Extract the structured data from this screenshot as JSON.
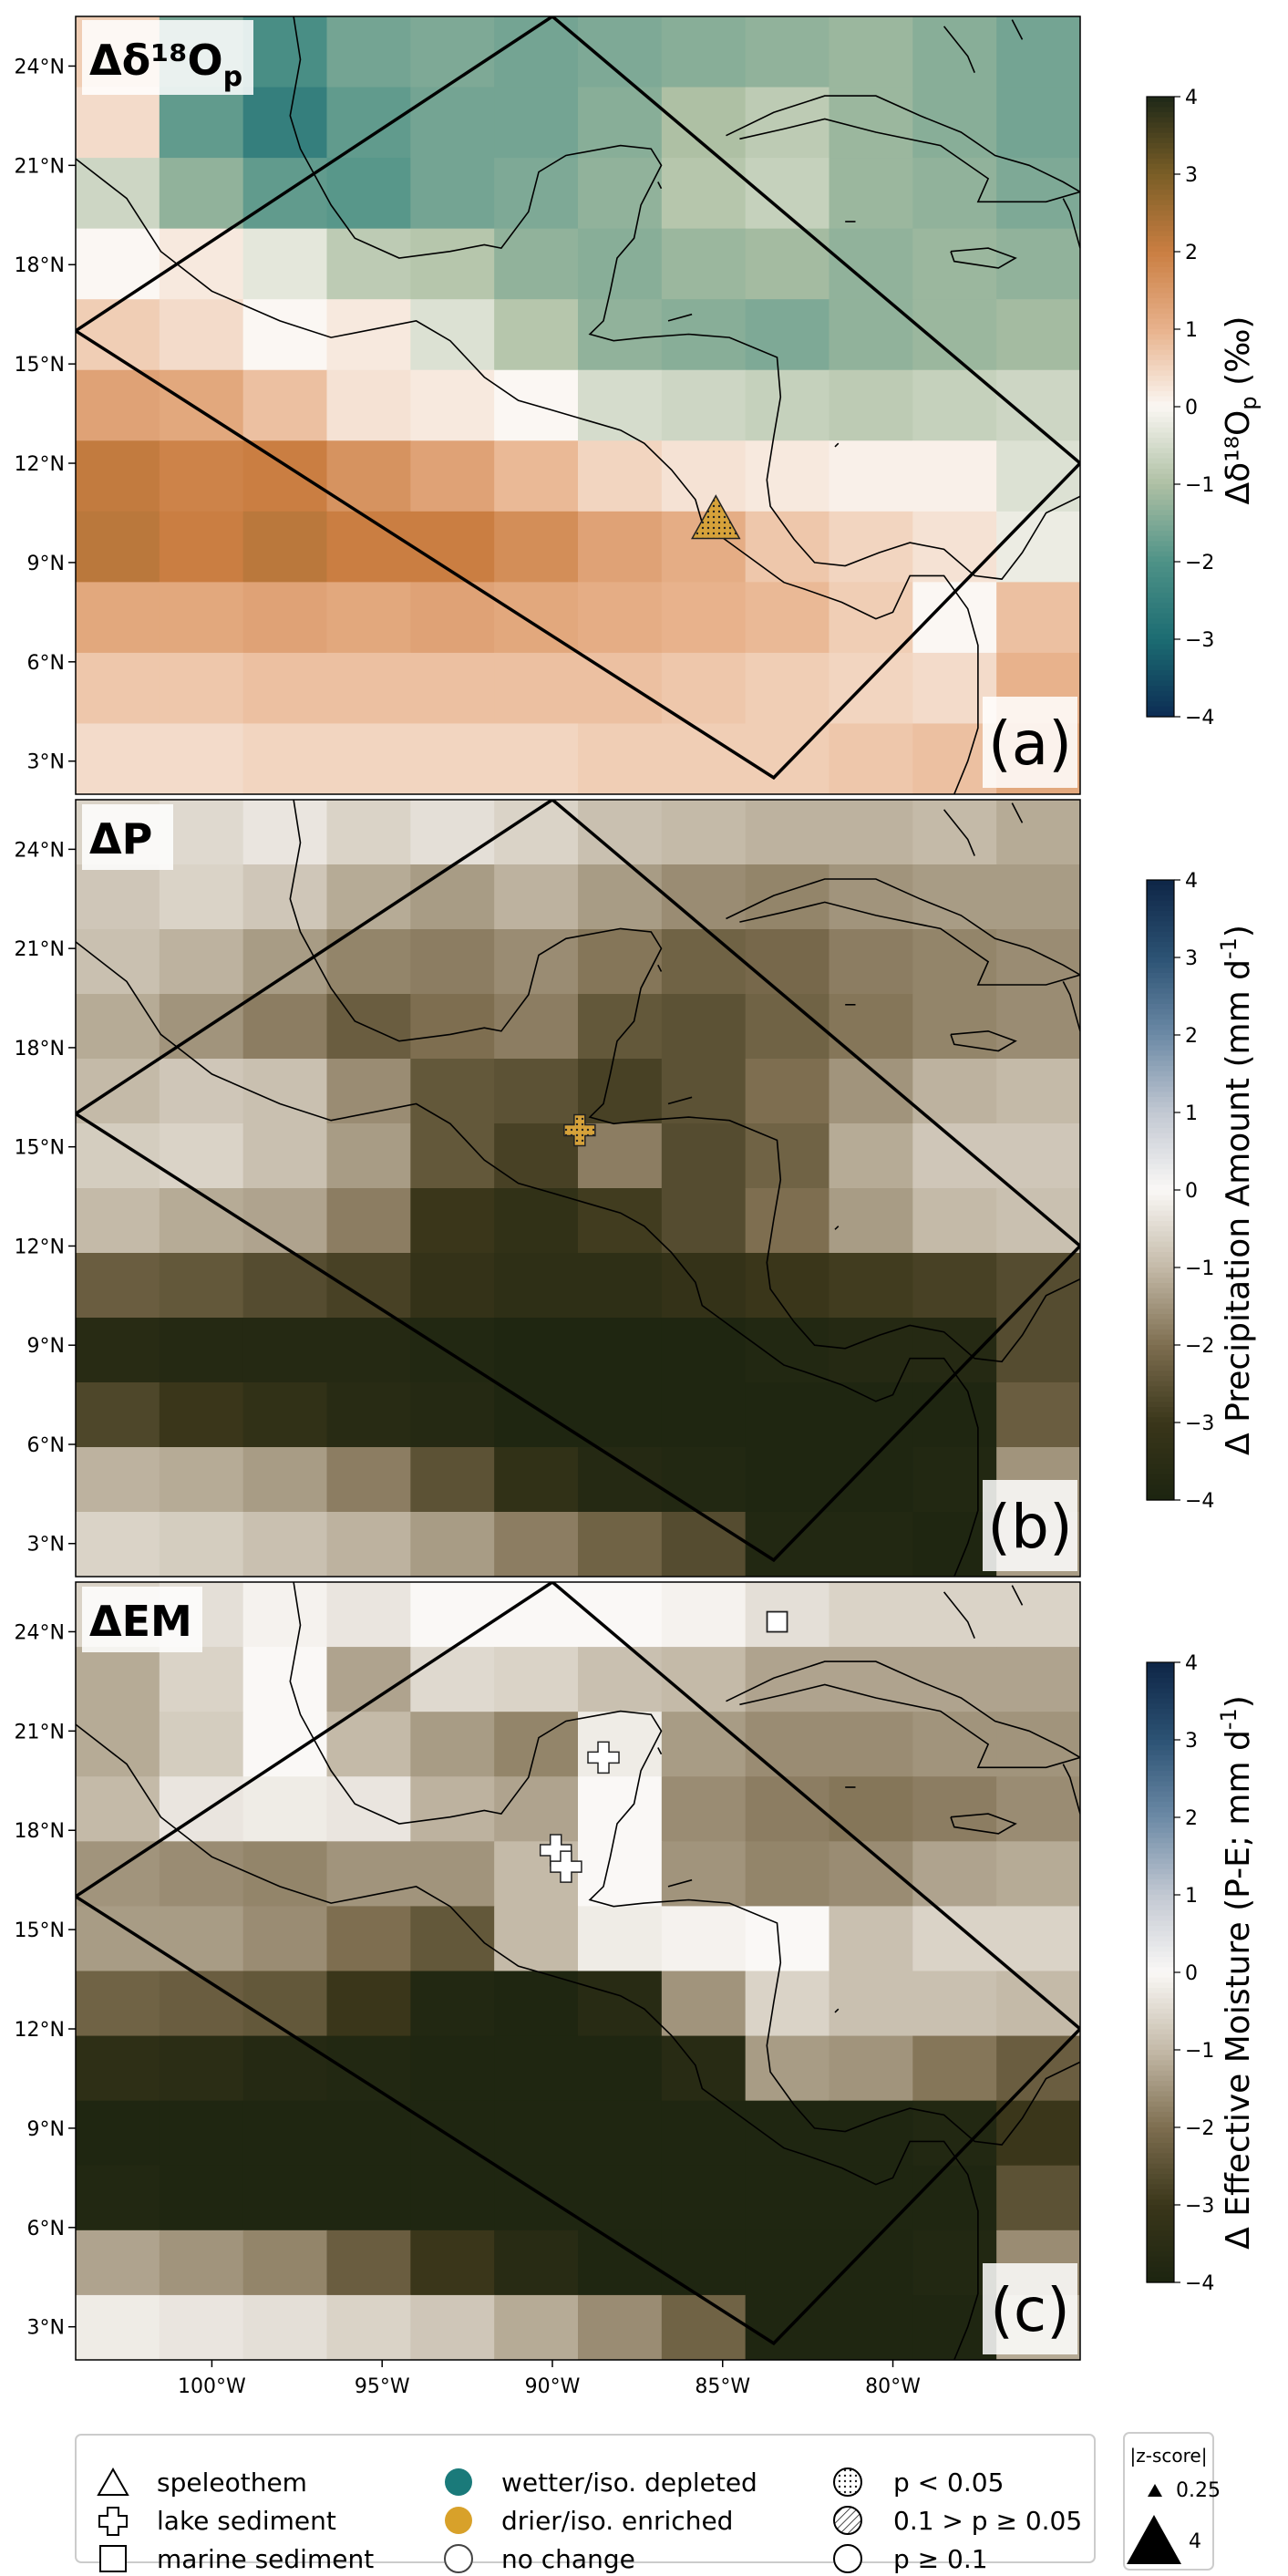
{
  "chart_data": [
    {
      "type": "heatmap",
      "panel_label": "(a)",
      "corner_label": "Δδ¹⁸O",
      "corner_sub": "p",
      "colorbar_label": "Δδ¹⁸O",
      "colorbar_sub": "p",
      "colorbar_unit": " (‰)",
      "colorbar_ticks": [
        -4,
        -3,
        -2,
        -1,
        0,
        1,
        2,
        3,
        4
      ],
      "vmin": -4,
      "vmax": 4,
      "cmap": "teal-brown",
      "x_lon_edges": [
        -104,
        -98.5,
        -93,
        -87.5,
        -82,
        -76.5
      ],
      "y_lat_range": [
        2,
        25.5
      ],
      "grid": [
        [
          0.6,
          -1.6,
          -2.1,
          -1.6,
          -1.5,
          -1.6,
          -1.5,
          -1.4,
          -1.3,
          -1.2,
          -1.4,
          -1.6
        ],
        [
          0.4,
          -1.8,
          -2.5,
          -1.8,
          -1.6,
          -1.6,
          -1.4,
          -1.0,
          -0.8,
          -1.2,
          -1.4,
          -1.6
        ],
        [
          -0.6,
          -1.3,
          -1.8,
          -1.9,
          -1.6,
          -1.5,
          -1.3,
          -0.9,
          -0.7,
          -1.2,
          -1.3,
          -1.5
        ],
        [
          0.0,
          0.2,
          -0.3,
          -0.8,
          -0.9,
          -1.3,
          -1.4,
          -1.2,
          -1.1,
          -1.3,
          -1.2,
          -1.3
        ],
        [
          0.6,
          0.4,
          0.0,
          0.2,
          -0.4,
          -0.9,
          -1.3,
          -1.4,
          -1.5,
          -1.3,
          -1.2,
          -1.1
        ],
        [
          1.3,
          1.2,
          0.8,
          0.3,
          0.2,
          0.0,
          -0.5,
          -0.6,
          -0.7,
          -0.8,
          -0.7,
          -0.6
        ],
        [
          2.1,
          1.9,
          2.0,
          1.6,
          1.3,
          0.9,
          0.5,
          0.3,
          0.2,
          0.1,
          0.1,
          -0.4
        ],
        [
          2.2,
          2.0,
          2.2,
          2.0,
          2.0,
          1.7,
          1.3,
          1.1,
          0.7,
          0.5,
          0.3,
          -0.2
        ],
        [
          1.2,
          1.2,
          1.3,
          1.2,
          1.3,
          1.2,
          1.1,
          1.0,
          0.9,
          0.6,
          0.0,
          0.8
        ],
        [
          0.7,
          0.7,
          0.8,
          0.8,
          0.8,
          0.8,
          0.8,
          0.7,
          0.6,
          0.5,
          0.4,
          1.0
        ],
        [
          0.4,
          0.4,
          0.5,
          0.5,
          0.5,
          0.5,
          0.6,
          0.6,
          0.6,
          0.7,
          0.8,
          1.2
        ]
      ],
      "proxies": [
        {
          "type": "speleothem",
          "lon": -85.2,
          "lat": 10.3,
          "color": "#d6a23a",
          "significance": "p < 0.05"
        }
      ]
    },
    {
      "type": "heatmap",
      "panel_label": "(b)",
      "corner_label": "ΔP",
      "corner_sub": "",
      "colorbar_label": "Δ Precipitation Amount (mm d",
      "colorbar_sub": "",
      "colorbar_unit": "-1",
      "colorbar_unit_tail": ")",
      "colorbar_ticks": [
        -4,
        -3,
        -2,
        -1,
        0,
        1,
        2,
        3,
        4
      ],
      "vmin": -4,
      "vmax": 4,
      "cmap": "brown-blue",
      "x_lon_edges": [
        -104,
        -98.5,
        -93,
        -87.5,
        -82,
        -76.5
      ],
      "y_lat_range": [
        2,
        25.5
      ],
      "grid": [
        [
          -0.6,
          -0.5,
          -0.3,
          -0.6,
          -0.4,
          -0.6,
          -0.9,
          -1.0,
          -1.1,
          -1.1,
          -1.0,
          -1.2
        ],
        [
          -0.8,
          -0.6,
          -0.8,
          -1.2,
          -1.4,
          -1.1,
          -1.4,
          -1.6,
          -1.7,
          -1.5,
          -1.4,
          -1.4
        ],
        [
          -0.9,
          -1.1,
          -1.4,
          -1.7,
          -1.8,
          -1.6,
          -1.9,
          -2.2,
          -2.1,
          -1.8,
          -1.7,
          -1.6
        ],
        [
          -1.2,
          -1.5,
          -1.8,
          -2.3,
          -2.0,
          -1.8,
          -2.4,
          -2.5,
          -2.2,
          -1.9,
          -1.7,
          -1.6
        ],
        [
          -1.0,
          -0.8,
          -0.9,
          -1.6,
          -2.4,
          -2.5,
          -2.8,
          -2.5,
          -2.0,
          -1.5,
          -1.1,
          -1.0
        ],
        [
          -0.7,
          -0.6,
          -0.9,
          -1.4,
          -2.4,
          -2.8,
          -1.8,
          -2.6,
          -2.2,
          -1.2,
          -0.8,
          -0.8
        ],
        [
          -1.0,
          -1.2,
          -1.3,
          -1.8,
          -3.0,
          -3.3,
          -2.9,
          -2.6,
          -2.0,
          -1.4,
          -1.0,
          -0.9
        ],
        [
          -2.3,
          -2.4,
          -2.6,
          -2.8,
          -3.2,
          -3.4,
          -3.4,
          -3.2,
          -3.0,
          -2.9,
          -2.8,
          -2.6
        ],
        [
          -3.6,
          -3.7,
          -3.7,
          -3.7,
          -3.8,
          -3.9,
          -3.9,
          -3.9,
          -3.8,
          -3.7,
          -3.7,
          -2.6
        ],
        [
          -2.7,
          -3.0,
          -3.3,
          -3.6,
          -3.7,
          -3.9,
          -3.9,
          -3.9,
          -3.9,
          -3.9,
          -3.9,
          -2.3
        ],
        [
          -1.1,
          -1.2,
          -1.4,
          -1.8,
          -2.5,
          -3.3,
          -3.7,
          -3.8,
          -3.9,
          -3.9,
          -3.8,
          -1.5
        ],
        [
          -0.6,
          -0.7,
          -0.9,
          -1.1,
          -1.4,
          -1.8,
          -2.2,
          -2.6,
          -3.8,
          -3.8,
          -3.9,
          -1.4
        ]
      ],
      "proxies": [
        {
          "type": "lake sediment",
          "lon": -89.2,
          "lat": 15.5,
          "color": "#d6a23a",
          "significance": "p < 0.05"
        }
      ]
    },
    {
      "type": "heatmap",
      "panel_label": "(c)",
      "corner_label": "ΔEM",
      "corner_sub": "",
      "colorbar_label": "Δ Effective Moisture (P-E; mm d",
      "colorbar_sub": "",
      "colorbar_unit": "-1",
      "colorbar_unit_tail": ")",
      "colorbar_ticks": [
        -4,
        -3,
        -2,
        -1,
        0,
        1,
        2,
        3,
        4
      ],
      "vmin": -4,
      "vmax": 4,
      "cmap": "brown-blue",
      "x_lon_edges": [
        -104,
        -98.5,
        -93,
        -87.5,
        -82,
        -76.5
      ],
      "y_lat_range": [
        2,
        25.5
      ],
      "grid": [
        [
          -0.6,
          -0.4,
          -0.1,
          -0.3,
          0.0,
          0.0,
          0.0,
          -0.1,
          -0.4,
          -0.6,
          -0.6,
          -0.6
        ],
        [
          -1.2,
          -0.6,
          0.0,
          -1.3,
          -0.5,
          -0.6,
          -0.9,
          -1.0,
          -1.3,
          -1.3,
          -1.3,
          -1.3
        ],
        [
          -1.2,
          -0.7,
          0.0,
          -1.0,
          -1.4,
          -1.7,
          -0.2,
          -1.4,
          -1.6,
          -1.6,
          -1.5,
          -1.5
        ],
        [
          -1.0,
          -0.3,
          -0.2,
          -0.3,
          -1.1,
          -1.3,
          0.0,
          -1.6,
          -1.8,
          -1.9,
          -1.8,
          -1.6
        ],
        [
          -1.5,
          -1.6,
          -1.7,
          -1.5,
          -1.5,
          -1.0,
          0.0,
          -1.5,
          -1.7,
          -1.6,
          -1.3,
          -1.2
        ],
        [
          -1.4,
          -1.4,
          -1.6,
          -2.0,
          -2.4,
          -1.0,
          -0.2,
          -0.1,
          0.0,
          -0.9,
          -0.6,
          -0.6
        ],
        [
          -2.2,
          -2.3,
          -2.4,
          -3.0,
          -3.8,
          -3.9,
          -3.6,
          -1.5,
          -0.6,
          -0.9,
          -0.9,
          -1.0
        ],
        [
          -3.4,
          -3.5,
          -3.7,
          -3.8,
          -3.9,
          -3.9,
          -3.9,
          -3.6,
          -1.4,
          -1.5,
          -1.9,
          -2.3
        ],
        [
          -3.9,
          -3.9,
          -3.9,
          -3.9,
          -3.9,
          -3.9,
          -3.9,
          -3.9,
          -3.9,
          -3.9,
          -3.8,
          -3.0
        ],
        [
          -3.8,
          -3.9,
          -3.9,
          -3.9,
          -3.9,
          -3.9,
          -3.9,
          -3.9,
          -3.9,
          -3.9,
          -3.9,
          -2.5
        ],
        [
          -1.3,
          -1.5,
          -1.7,
          -2.3,
          -3.0,
          -3.6,
          -3.9,
          -3.9,
          -3.9,
          -3.9,
          -3.8,
          -1.6
        ],
        [
          -0.2,
          -0.3,
          -0.4,
          -0.6,
          -0.8,
          -1.2,
          -1.6,
          -2.2,
          -3.9,
          -3.9,
          -3.9,
          -1.2
        ]
      ],
      "proxies": [
        {
          "type": "lake sediment",
          "lon": -88.5,
          "lat": 20.2,
          "color": "#ffffff",
          "significance": "p ≥ 0.1"
        },
        {
          "type": "lake sediment",
          "lon": -89.9,
          "lat": 17.4,
          "color": "#ffffff",
          "significance": "p ≥ 0.1"
        },
        {
          "type": "lake sediment",
          "lon": -89.6,
          "lat": 16.9,
          "color": "#ffffff",
          "significance": "p ≥ 0.1"
        },
        {
          "type": "marine sediment",
          "lon": -83.4,
          "lat": 24.3,
          "color": "#ffffff",
          "significance": "p ≥ 0.1"
        }
      ]
    }
  ],
  "axes": {
    "yticks": [
      {
        "lat": 3,
        "label": "3°N"
      },
      {
        "lat": 6,
        "label": "6°N"
      },
      {
        "lat": 9,
        "label": "9°N"
      },
      {
        "lat": 12,
        "label": "12°N"
      },
      {
        "lat": 15,
        "label": "15°N"
      },
      {
        "lat": 18,
        "label": "18°N"
      },
      {
        "lat": 21,
        "label": "21°N"
      },
      {
        "lat": 24,
        "label": "24°N"
      }
    ],
    "xticks": [
      {
        "lon": -100,
        "label": "100°W"
      },
      {
        "lon": -95,
        "label": "95°W"
      },
      {
        "lon": -90,
        "label": "90°W"
      },
      {
        "lon": -85,
        "label": "85°W"
      },
      {
        "lon": -80,
        "label": "80°W"
      }
    ],
    "lon_range": [
      -104,
      -74.5
    ]
  },
  "legend": {
    "archive": [
      {
        "label": "speleothem",
        "icon": "triangle"
      },
      {
        "label": "lake sediment",
        "icon": "cross"
      },
      {
        "label": "marine sediment",
        "icon": "square"
      }
    ],
    "direction": [
      {
        "label": "wetter/iso. depleted",
        "color": "#1a7a7a"
      },
      {
        "label": "drier/iso. enriched",
        "color": "#d8a12a"
      },
      {
        "label": "no change",
        "color": "#ffffff"
      }
    ],
    "significance": [
      {
        "label": "p < 0.05",
        "icon": "dotted-circle"
      },
      {
        "label": "0.1 > p ≥ 0.05",
        "icon": "hatched-circle"
      },
      {
        "label": "p ≥ 0.1",
        "icon": "plain-circle"
      }
    ],
    "zscore": {
      "title": "|z-score|",
      "sizes": [
        {
          "label": "0.25"
        },
        {
          "label": "4"
        }
      ]
    }
  }
}
